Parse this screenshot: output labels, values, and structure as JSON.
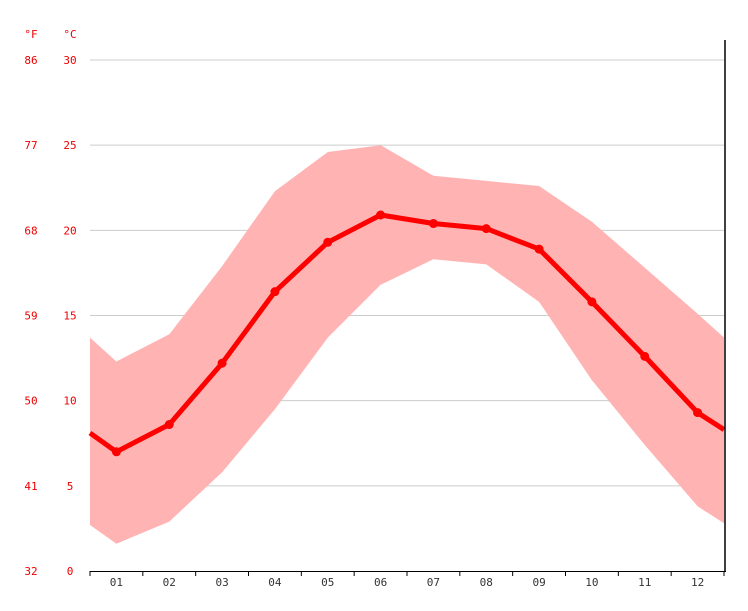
{
  "chart_data": {
    "type": "line",
    "title": "",
    "xlabel": "",
    "ylabel": "",
    "y_units": {
      "fahrenheit_label": "°F",
      "celsius_label": "°C"
    },
    "x_tick_labels": [
      "01",
      "02",
      "03",
      "04",
      "05",
      "06",
      "07",
      "08",
      "09",
      "10",
      "11",
      "12"
    ],
    "y_ticks_celsius": [
      "30",
      "25",
      "20",
      "15",
      "10",
      "5",
      "0"
    ],
    "y_ticks_fahrenheit": [
      "86",
      "77",
      "68",
      "59",
      "50",
      "41",
      "32"
    ],
    "ylim_celsius": [
      0,
      30
    ],
    "grid": true,
    "series": [
      {
        "values": [
          7.0,
          8.6,
          12.2,
          16.4,
          19.3,
          20.9,
          20.4,
          20.1,
          18.9,
          15.8,
          12.6,
          9.3
        ]
      }
    ],
    "band": {
      "upper": [
        12.3,
        13.9,
        17.9,
        22.3,
        24.6,
        25.0,
        23.2,
        22.9,
        22.6,
        20.5,
        17.8,
        15.1
      ],
      "lower": [
        1.6,
        2.9,
        5.8,
        9.5,
        13.7,
        16.8,
        18.3,
        18.0,
        15.8,
        11.2,
        7.4,
        3.8
      ]
    },
    "edge_values": {
      "line_start": 8.1,
      "line_end": 8.3,
      "upper_start": 13.7,
      "upper_end": 13.7,
      "lower_start": 2.7,
      "lower_end": 2.8
    },
    "colors": {
      "line": "#ff0000",
      "band": "#ffb3b3",
      "tick_text": "#ee0000",
      "x_tick_text": "#333333",
      "grid": "#cccccc",
      "axis": "#000000"
    }
  }
}
